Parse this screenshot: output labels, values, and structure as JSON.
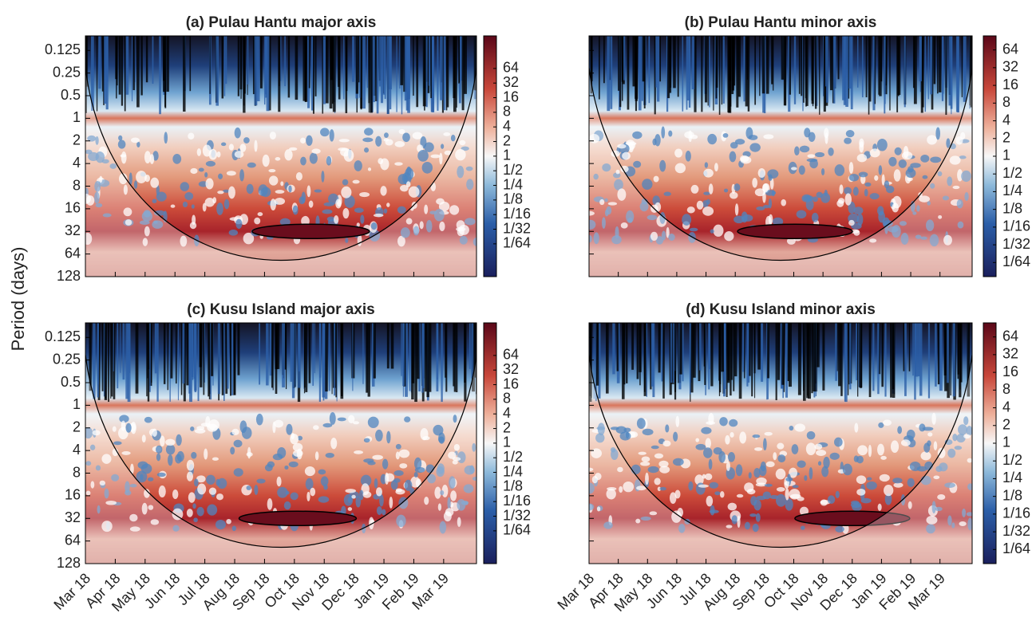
{
  "figure": {
    "ylabel": "Period (days)"
  },
  "chart_data": [
    {
      "type": "heatmap",
      "title": "(a) Pulau Hantu major axis",
      "log_y": true,
      "ylim": [
        0.08,
        128
      ],
      "yticks": [
        0.125,
        0.25,
        0.5,
        1,
        2,
        4,
        8,
        16,
        32,
        64,
        128
      ],
      "colorbar": {
        "lim": [
          0.0033,
          300
        ],
        "ticks": [
          64,
          32,
          16,
          8,
          4,
          2,
          1,
          {
            "value": 0.5,
            "label": "1/2"
          },
          {
            "value": 0.25,
            "label": "1/4"
          },
          {
            "value": 0.125,
            "label": "1/8"
          },
          {
            "value": 0.0625,
            "label": "1/16"
          },
          {
            "value": 0.03125,
            "label": "1/32"
          },
          {
            "value": 0.015625,
            "label": "1/64"
          }
        ]
      }
    },
    {
      "type": "heatmap",
      "title": "(b) Pulau Hantu minor axis",
      "log_y": true,
      "ylim": [
        0.08,
        128
      ],
      "colorbar": {
        "lim": [
          0.009,
          111
        ],
        "ticks": [
          64,
          32,
          16,
          8,
          4,
          2,
          1,
          {
            "value": 0.5,
            "label": "1/2"
          },
          {
            "value": 0.25,
            "label": "1/4"
          },
          {
            "value": 0.125,
            "label": "1/8"
          },
          {
            "value": 0.0625,
            "label": "1/16"
          },
          {
            "value": 0.03125,
            "label": "1/32"
          },
          {
            "value": 0.015625,
            "label": "1/64"
          }
        ]
      }
    },
    {
      "type": "heatmap",
      "title": "(c) Kusu Island major axis",
      "log_y": true,
      "ylim": [
        0.08,
        128
      ],
      "yticks": [
        0.125,
        0.25,
        0.5,
        1,
        2,
        4,
        8,
        16,
        32,
        64,
        128
      ],
      "xticks": [
        "Mar 18",
        "Apr 18",
        "May 18",
        "Jun 18",
        "Jul 18",
        "Aug 18",
        "Sep 18",
        "Oct 18",
        "Nov 18",
        "Dec 18",
        "Jan 19",
        "Feb 19",
        "Mar 19"
      ],
      "colorbar": {
        "lim": [
          0.0033,
          300
        ],
        "ticks": [
          64,
          32,
          16,
          8,
          4,
          2,
          1,
          {
            "value": 0.5,
            "label": "1/2"
          },
          {
            "value": 0.25,
            "label": "1/4"
          },
          {
            "value": 0.125,
            "label": "1/8"
          },
          {
            "value": 0.0625,
            "label": "1/16"
          },
          {
            "value": 0.03125,
            "label": "1/32"
          },
          {
            "value": 0.015625,
            "label": "1/64"
          }
        ]
      }
    },
    {
      "type": "heatmap",
      "title": "(d) Kusu Island minor axis",
      "log_y": true,
      "ylim": [
        0.08,
        128
      ],
      "xticks": [
        "Mar 18",
        "Apr 18",
        "May 18",
        "Jun 18",
        "Jul 18",
        "Aug 18",
        "Sep 18",
        "Oct 18",
        "Nov 18",
        "Dec 18",
        "Jan 19",
        "Feb 19",
        "Mar 19"
      ],
      "colorbar": {
        "lim": [
          0.009,
          111
        ],
        "ticks": [
          64,
          32,
          16,
          8,
          4,
          2,
          1,
          {
            "value": 0.5,
            "label": "1/2"
          },
          {
            "value": 0.25,
            "label": "1/4"
          },
          {
            "value": 0.125,
            "label": "1/8"
          },
          {
            "value": 0.0625,
            "label": "1/16"
          },
          {
            "value": 0.03125,
            "label": "1/32"
          },
          {
            "value": 0.015625,
            "label": "1/64"
          }
        ]
      }
    }
  ]
}
